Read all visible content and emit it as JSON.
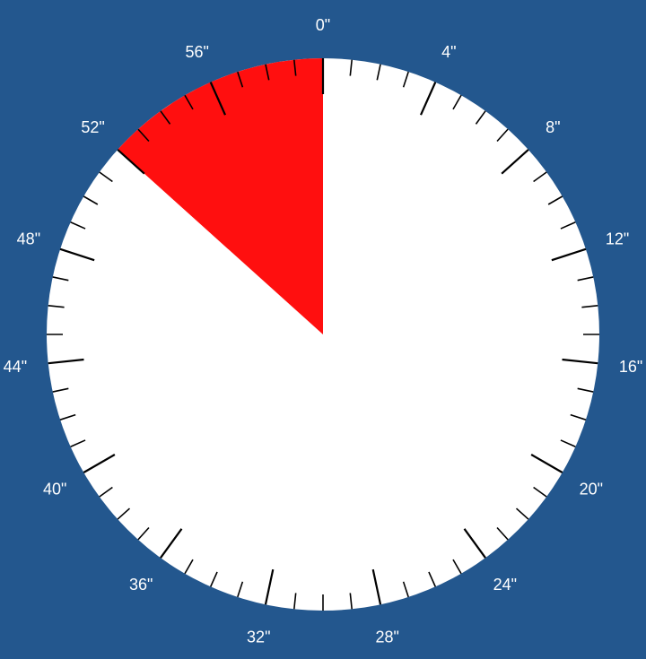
{
  "timer": {
    "elapsed_seconds": 8,
    "direction": "counterclockwise-from-top",
    "scale_max_seconds": 60,
    "colors": {
      "background": "#23578e",
      "dial_face": "#ffffff",
      "sector": "#ff0f0f",
      "ticks": "#000000",
      "labels": "#ffffff"
    }
  },
  "dial_labels": [
    {
      "value": 0,
      "text": "0\""
    },
    {
      "value": 4,
      "text": "4\""
    },
    {
      "value": 8,
      "text": "8\""
    },
    {
      "value": 12,
      "text": "12\""
    },
    {
      "value": 16,
      "text": "16\""
    },
    {
      "value": 20,
      "text": "20\""
    },
    {
      "value": 24,
      "text": "24\""
    },
    {
      "value": 28,
      "text": "28\""
    },
    {
      "value": 32,
      "text": "32\""
    },
    {
      "value": 36,
      "text": "36\""
    },
    {
      "value": 40,
      "text": "40\""
    },
    {
      "value": 44,
      "text": "44\""
    },
    {
      "value": 48,
      "text": "48\""
    },
    {
      "value": 52,
      "text": "52\""
    },
    {
      "value": 56,
      "text": "56\""
    }
  ]
}
